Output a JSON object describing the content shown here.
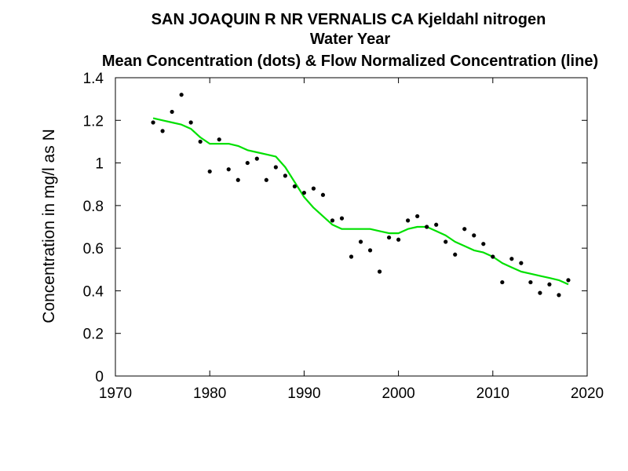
{
  "chart_data": {
    "type": "scatter",
    "title": "SAN JOAQUIN R NR VERNALIS CA   Kjeldahl nitrogen",
    "subtitle_1": "Water Year",
    "subtitle_2": "Mean Concentration (dots) & Flow Normalized Concentration (line)",
    "xlabel": "",
    "ylabel": "Concentration in mg/l as N",
    "xlim": [
      1970,
      2020
    ],
    "ylim": [
      0,
      1.4
    ],
    "xticks": [
      "1970",
      "1980",
      "1990",
      "2000",
      "2010",
      "2020"
    ],
    "yticks": [
      "0",
      "0.2",
      "0.4",
      "0.6",
      "0.8",
      "1",
      "1.2",
      "1.4"
    ],
    "grid": false,
    "colors": {
      "points": "#000000",
      "line": "#00e000"
    },
    "series": [
      {
        "type": "scatter",
        "x": [
          1974,
          1975,
          1976,
          1977,
          1978,
          1979,
          1980,
          1981,
          1982,
          1983,
          1984,
          1985,
          1986,
          1987,
          1988,
          1989,
          1990,
          1991,
          1992,
          1993,
          1994,
          1995,
          1996,
          1997,
          1998,
          1999,
          2000,
          2001,
          2002,
          2003,
          2004,
          2005,
          2006,
          2007,
          2008,
          2009,
          2010,
          2011,
          2012,
          2013,
          2014,
          2015,
          2016,
          2017,
          2018
        ],
        "y": [
          1.19,
          1.15,
          1.24,
          1.32,
          1.19,
          1.1,
          0.96,
          1.11,
          0.97,
          0.92,
          1.0,
          1.02,
          0.92,
          0.98,
          0.94,
          0.89,
          0.86,
          0.88,
          0.85,
          0.73,
          0.74,
          0.56,
          0.63,
          0.59,
          0.49,
          0.65,
          0.64,
          0.73,
          0.75,
          0.7,
          0.71,
          0.63,
          0.57,
          0.69,
          0.66,
          0.62,
          0.56,
          0.44,
          0.55,
          0.53,
          0.44,
          0.39,
          0.43,
          0.38,
          0.45
        ]
      },
      {
        "type": "line",
        "x": [
          1974,
          1975,
          1976,
          1977,
          1978,
          1979,
          1980,
          1981,
          1982,
          1983,
          1984,
          1985,
          1986,
          1987,
          1988,
          1989,
          1990,
          1991,
          1992,
          1993,
          1994,
          1995,
          1996,
          1997,
          1998,
          1999,
          2000,
          2001,
          2002,
          2003,
          2004,
          2005,
          2006,
          2007,
          2008,
          2009,
          2010,
          2011,
          2012,
          2013,
          2014,
          2015,
          2016,
          2017,
          2018
        ],
        "y": [
          1.21,
          1.2,
          1.19,
          1.18,
          1.16,
          1.12,
          1.09,
          1.09,
          1.09,
          1.08,
          1.06,
          1.05,
          1.04,
          1.03,
          0.98,
          0.91,
          0.84,
          0.79,
          0.75,
          0.71,
          0.69,
          0.69,
          0.69,
          0.69,
          0.68,
          0.67,
          0.67,
          0.69,
          0.7,
          0.7,
          0.68,
          0.66,
          0.63,
          0.61,
          0.59,
          0.58,
          0.56,
          0.53,
          0.51,
          0.49,
          0.48,
          0.47,
          0.46,
          0.45,
          0.43
        ]
      }
    ]
  }
}
